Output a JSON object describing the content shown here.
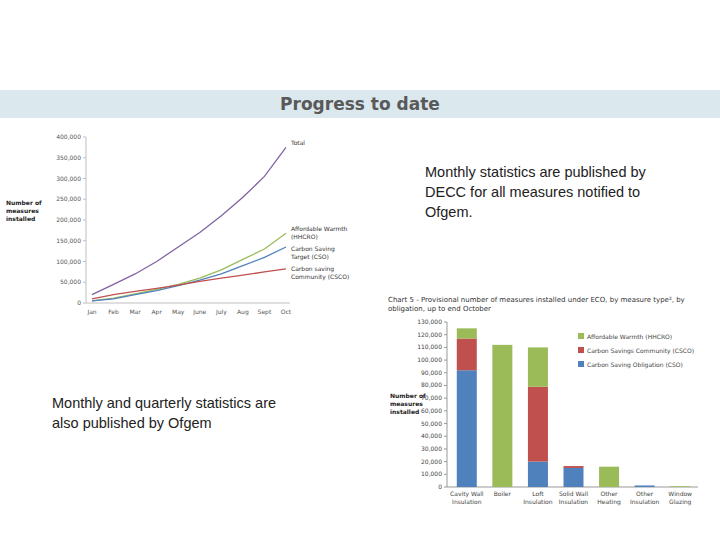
{
  "header": {
    "title": "Progress to date"
  },
  "notes": [
    "Monthly statistics are published by DECC for all measures notified to Ofgem.",
    "Monthly and quarterly statistics are also published by Ofgem"
  ],
  "chart_data": [
    {
      "type": "line",
      "y_label": "Number of measures installed",
      "categories": [
        "Jan",
        "Feb",
        "Mar",
        "Apr",
        "May",
        "June",
        "July",
        "Aug",
        "Sept",
        "Oct"
      ],
      "series": [
        {
          "name": "Total",
          "color": "#8064a2",
          "values": [
            20000,
            45000,
            70000,
            100000,
            135000,
            170000,
            210000,
            255000,
            305000,
            375000
          ]
        },
        {
          "name": "Affordable Warmth (HHCRO)",
          "color": "#9bbb59",
          "values": [
            5000,
            12000,
            22000,
            33000,
            45000,
            60000,
            80000,
            105000,
            130000,
            168000
          ]
        },
        {
          "name": "Carbon Saving Target (CSO)",
          "color": "#4f81bd",
          "values": [
            5000,
            10000,
            20000,
            30000,
            42000,
            55000,
            70000,
            90000,
            110000,
            135000
          ]
        },
        {
          "name": "Carbon saving Community (CSCO)",
          "color": "#c0504d",
          "values": [
            10000,
            20000,
            28000,
            35000,
            43000,
            52000,
            60000,
            67000,
            75000,
            82000
          ]
        }
      ],
      "ylim": [
        0,
        400000
      ],
      "yticks": [
        0,
        {
          "value": 50000,
          "label": "50,000"
        },
        {
          "value": 100000,
          "label": "100,000"
        },
        {
          "value": 150000,
          "label": "150,000"
        },
        {
          "value": 200000,
          "label": "200,000"
        },
        {
          "value": 250000,
          "label": "250,000"
        },
        {
          "value": 300000,
          "label": "300,000"
        },
        {
          "value": 350000,
          "label": "350,000"
        },
        {
          "value": 400000,
          "label": "400,000"
        }
      ],
      "grid": false
    },
    {
      "type": "bar",
      "title": "Chart 5 - Provisional number of measures installed under ECO, by measure type², by obligation, up to end October",
      "y_label": "Number of measures installed",
      "categories": [
        "Cavity Wall Insulation",
        "Boiler",
        "Loft Insulation",
        "Solid Wall Insulation",
        "Other Heating",
        "Other Insulation",
        "Window Glazing"
      ],
      "series": [
        {
          "name": "Carbon Saving Obligation (CSO)",
          "color": "#4f81bd",
          "values": [
            92000,
            0,
            20000,
            15000,
            0,
            1200,
            0
          ]
        },
        {
          "name": "Carbon Savings Community (CSCO)",
          "color": "#c0504d",
          "values": [
            25000,
            0,
            59000,
            1500,
            0,
            0,
            0
          ]
        },
        {
          "name": "Affordable Warmth (HHCRO)",
          "color": "#9bbb59",
          "values": [
            8000,
            112000,
            31000,
            0,
            16000,
            0,
            600
          ]
        }
      ],
      "stacked": true,
      "legend": "right",
      "ylim": [
        0,
        130000
      ],
      "yticks": [
        0,
        {
          "value": 10000,
          "label": "10,000"
        },
        {
          "value": 20000,
          "label": "20,000"
        },
        {
          "value": 30000,
          "label": "30,000"
        },
        {
          "value": 40000,
          "label": "40,000"
        },
        {
          "value": 50000,
          "label": "50,000"
        },
        {
          "value": 60000,
          "label": "60,000"
        },
        {
          "value": 70000,
          "label": "70,000"
        },
        {
          "value": 80000,
          "label": "80,000"
        },
        {
          "value": 90000,
          "label": "90,000"
        },
        {
          "value": 100000,
          "label": "100,000"
        },
        {
          "value": 110000,
          "label": "110,000"
        },
        {
          "value": 120000,
          "label": "120,000"
        },
        {
          "value": 130000,
          "label": "130,000"
        }
      ],
      "grid": false
    }
  ]
}
